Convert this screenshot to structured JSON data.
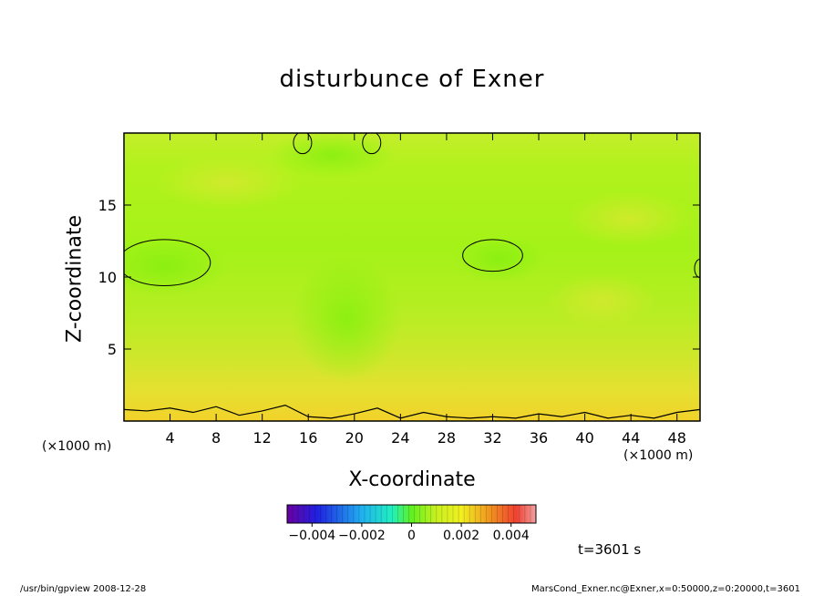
{
  "chart_data": {
    "type": "heatmap",
    "title": "disturbunce of Exner",
    "xlabel": "X-coordinate",
    "ylabel": "Z-coordinate",
    "x_unit_left": "(×1000 m)",
    "x_unit_right": "(×1000 m)",
    "xlim": [
      0,
      50
    ],
    "ylim": [
      0,
      20
    ],
    "x_ticks": [
      4,
      8,
      12,
      16,
      20,
      24,
      28,
      32,
      36,
      40,
      44,
      48
    ],
    "y_ticks": [
      5,
      10,
      15
    ],
    "colorbar": {
      "min": -0.005,
      "max": 0.005,
      "tick_labels": [
        "−0.004",
        "−0.002",
        "0",
        "0.002",
        "0.004"
      ],
      "tick_values": [
        -0.004,
        -0.002,
        0,
        0.002,
        0.004
      ]
    },
    "contours": [
      {
        "desc": "lower boundary layer contour",
        "x": [
          0,
          2,
          4,
          6,
          8,
          10,
          12,
          14,
          16,
          18,
          20,
          22,
          24,
          26,
          28,
          30,
          32,
          34,
          36,
          38,
          40,
          42,
          44,
          46,
          48,
          50
        ],
        "z": [
          0.8,
          0.7,
          0.9,
          0.6,
          1.0,
          0.4,
          0.7,
          1.1,
          0.3,
          0.2,
          0.5,
          0.9,
          0.2,
          0.6,
          0.3,
          0.2,
          0.3,
          0.2,
          0.5,
          0.3,
          0.6,
          0.2,
          0.4,
          0.2,
          0.6,
          0.8
        ]
      },
      {
        "desc": "closed contour left",
        "cx": 3.5,
        "cz": 11.0,
        "rx": 4.0,
        "rz": 1.6
      },
      {
        "desc": "closed contour right",
        "cx": 32.0,
        "cz": 11.5,
        "rx": 2.6,
        "rz": 1.1
      }
    ],
    "annotation_time": "t=3601 s"
  },
  "footer": {
    "left": "/usr/bin/gpview   2008-12-28",
    "right": "MarsCond_Exner.nc@Exner,x=0:50000,z=0:20000,t=3601"
  }
}
